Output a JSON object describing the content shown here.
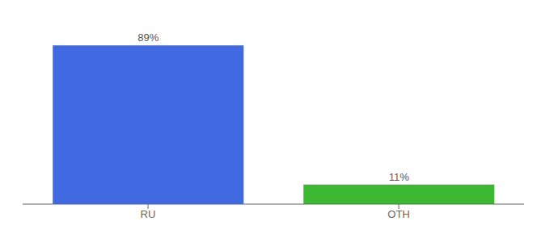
{
  "chart_data": {
    "type": "bar",
    "categories": [
      "RU",
      "OTH"
    ],
    "values": [
      89,
      11
    ],
    "value_labels": [
      "89%",
      "11%"
    ],
    "colors": [
      "#4169e1",
      "#3cb832"
    ],
    "ylim": [
      0,
      100
    ],
    "data_labels": true,
    "tick_labels": "x",
    "grid": false
  }
}
